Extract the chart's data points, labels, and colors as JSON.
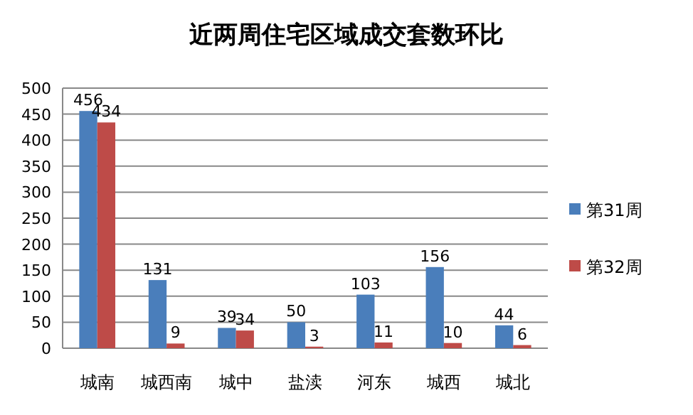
{
  "chart_data": {
    "type": "bar",
    "title": "近两周住宅区域成交套数环比",
    "categories": [
      "城南",
      "城西南",
      "城中",
      "盐渎",
      "河东",
      "城西",
      "城北"
    ],
    "series": [
      {
        "name": "第31周",
        "color": "#4a7ebb",
        "values": [
          456,
          131,
          39,
          50,
          103,
          156,
          44
        ]
      },
      {
        "name": "第32周",
        "color": "#be4b48",
        "values": [
          434,
          9,
          34,
          3,
          11,
          10,
          6
        ]
      }
    ],
    "ylim": [
      0,
      500
    ],
    "yticks": [
      0,
      50,
      100,
      150,
      200,
      250,
      300,
      350,
      400,
      450,
      500
    ],
    "grid": "y",
    "legend": "right",
    "data_labels": true
  }
}
